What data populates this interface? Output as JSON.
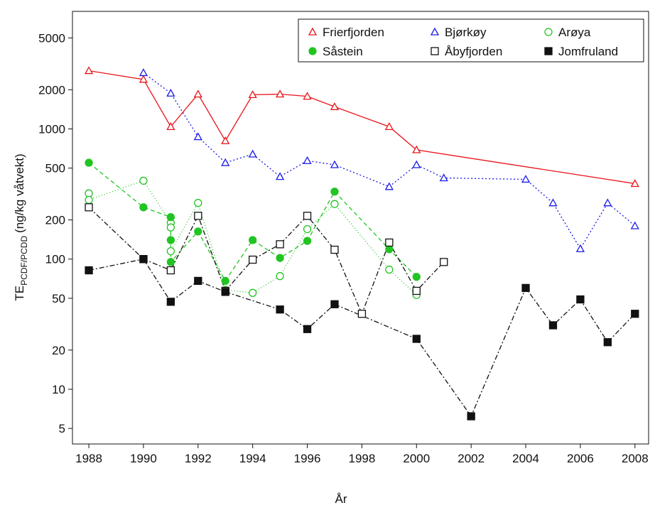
{
  "chart_data": {
    "type": "line",
    "ylabel": "TE",
    "ylabel_sub": "PCDF/PCDD",
    "ylabel_unit": "(ng/kg våtvekt)",
    "xlabel": "År",
    "xlim": [
      1987.4,
      2008.5
    ],
    "xticks": [
      1988,
      1990,
      1992,
      1994,
      1996,
      1998,
      2000,
      2002,
      2004,
      2006,
      2008
    ],
    "ylim": [
      3.8,
      8000
    ],
    "yticks": [
      5,
      10,
      20,
      50,
      100,
      200,
      500,
      1000,
      2000,
      5000
    ],
    "log_y": true,
    "grid": false,
    "legend": "upper right",
    "series": [
      {
        "name": "Frierfjorden",
        "color": "#e8141b",
        "marker": "triangle-open",
        "dash": "none",
        "x": [
          1988,
          1990,
          1991,
          1992,
          1993,
          1994,
          1995,
          1996,
          1997,
          1999,
          2000,
          2008
        ],
        "values": [
          2800,
          2400,
          1040,
          1850,
          810,
          1830,
          1850,
          1780,
          1480,
          1040,
          690,
          380
        ]
      },
      {
        "name": "Bjørkøy",
        "color": "#1a1ae6",
        "marker": "triangle-open",
        "dash": "2,3",
        "x": [
          1990,
          1991,
          1992,
          1993,
          1994,
          1995,
          1996,
          1997,
          1999,
          2000,
          2001,
          2004,
          2005,
          2006,
          2007,
          2008
        ],
        "values": [
          2700,
          1880,
          870,
          550,
          640,
          430,
          570,
          530,
          360,
          530,
          420,
          410,
          270,
          120,
          270,
          180
        ]
      },
      {
        "name": "Arøya",
        "color": "#22c422",
        "marker": "circle-open",
        "dash": "1,3",
        "x": [
          1988,
          1988,
          1990,
          1991,
          1991,
          1991,
          1992,
          1993,
          1994,
          1995,
          1996,
          1997,
          1999,
          2000
        ],
        "values": [
          320,
          285,
          400,
          190,
          175,
          115,
          270,
          58,
          55,
          74,
          170,
          265,
          83,
          53
        ]
      },
      {
        "name": "Såstein",
        "color": "#22c422",
        "marker": "circle",
        "dash": "6,4",
        "x": [
          1988,
          1990,
          1991,
          1991,
          1991,
          1992,
          1993,
          1994,
          1995,
          1996,
          1997,
          1999,
          2000
        ],
        "values": [
          550,
          250,
          210,
          140,
          95,
          163,
          68,
          140,
          102,
          138,
          330,
          119,
          73
        ]
      },
      {
        "name": "Åbyfjorden",
        "color": "#111111",
        "marker": "square-open",
        "dash": "7,3,2,3",
        "x": [
          1988,
          1990,
          1991,
          1992,
          1993,
          1994,
          1995,
          1996,
          1997,
          1998,
          1999,
          2000,
          2001
        ],
        "values": [
          250,
          100,
          82,
          215,
          57,
          99,
          130,
          215,
          118,
          38,
          134,
          57,
          95
        ]
      },
      {
        "name": "Jomfruland",
        "color": "#111111",
        "marker": "square",
        "dash": "7,3,2,3",
        "x": [
          1988,
          1990,
          1991,
          1992,
          1993,
          1995,
          1996,
          1997,
          2000,
          2002,
          2004,
          2005,
          2006,
          2007,
          2008
        ],
        "values": [
          82,
          100,
          47,
          68,
          56,
          41,
          29,
          45,
          24.4,
          6.2,
          60,
          31,
          49,
          23,
          38
        ]
      }
    ]
  }
}
